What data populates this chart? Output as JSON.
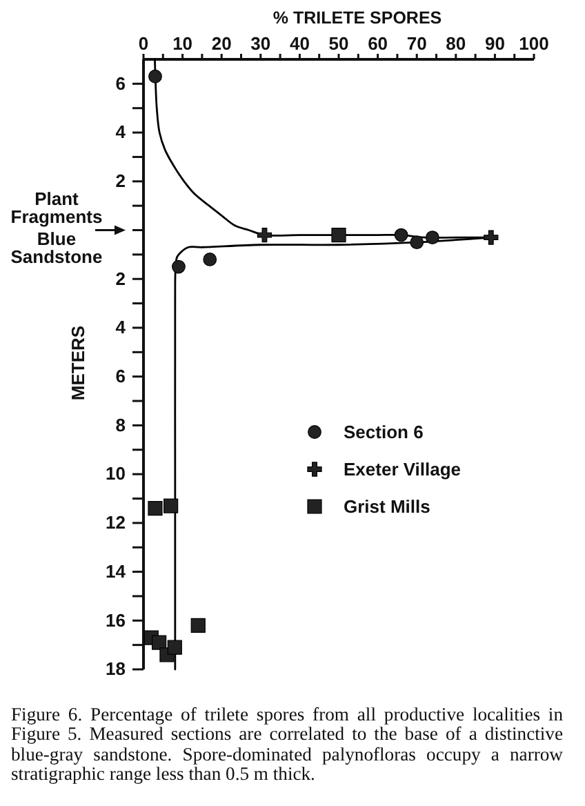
{
  "chart_data": {
    "type": "scatter",
    "xlabel": "% TRILETE SPORES",
    "ylabel": "METERS",
    "xlim": [
      0,
      100
    ],
    "xticks": [
      0,
      {
        "value": 5,
        "label": null
      },
      10,
      {
        "value": 15,
        "label": null
      },
      20,
      {
        "value": 25,
        "label": null
      },
      30,
      {
        "value": 35,
        "label": null
      },
      40,
      {
        "value": 45,
        "label": null
      },
      50,
      {
        "value": 55,
        "label": null
      },
      60,
      {
        "value": 65,
        "label": null
      },
      70,
      {
        "value": 75,
        "label": null
      },
      80,
      {
        "value": 85,
        "label": null
      },
      90,
      {
        "value": 95,
        "label": null
      },
      100
    ],
    "ylim": [
      -18,
      7
    ],
    "yticks": [
      6,
      {
        "value": 5,
        "label": null
      },
      4,
      {
        "value": 3,
        "label": null
      },
      2,
      {
        "value": 1,
        "label": null
      },
      {
        "value": 0,
        "label": null
      },
      {
        "value": -1,
        "label": null
      },
      {
        "value": -2,
        "label": "2"
      },
      {
        "value": -3,
        "label": null
      },
      {
        "value": -4,
        "label": "4"
      },
      {
        "value": -5,
        "label": null
      },
      {
        "value": -6,
        "label": "6"
      },
      {
        "value": -7,
        "label": null
      },
      {
        "value": -8,
        "label": "8"
      },
      {
        "value": -9,
        "label": null
      },
      {
        "value": -10,
        "label": "10"
      },
      {
        "value": -11,
        "label": null
      },
      {
        "value": -12,
        "label": "12"
      },
      {
        "value": -13,
        "label": null
      },
      {
        "value": -14,
        "label": "14"
      },
      {
        "value": -15,
        "label": null
      },
      {
        "value": -16,
        "label": "16"
      },
      {
        "value": -17,
        "label": null
      },
      {
        "value": -18,
        "label": "18"
      }
    ],
    "legend": "right",
    "series": [
      {
        "name": "Section 6",
        "marker": "circle",
        "color": "#222222",
        "x": [
          3,
          66,
          70,
          74,
          9,
          17
        ],
        "values": [
          6.3,
          -0.2,
          -0.5,
          -0.3,
          -1.5,
          -1.2
        ]
      },
      {
        "name": "Exeter Village",
        "marker": "cross",
        "color": "#222222",
        "x": [
          31,
          89
        ],
        "values": [
          -0.2,
          -0.3
        ]
      },
      {
        "name": "Grist Mills",
        "marker": "square",
        "color": "#222222",
        "x": [
          50,
          3,
          7,
          14,
          2,
          4,
          6,
          8
        ],
        "values": [
          -0.2,
          -11.4,
          -11.3,
          -16.2,
          -16.7,
          -16.9,
          -17.4,
          -17.1
        ]
      },
      {
        "type": "line",
        "color": "#000000",
        "x": [
          2.9,
          3.1,
          3.4,
          4.1,
          5.5,
          7.5,
          10.4,
          13,
          16.8,
          20,
          23.3,
          27,
          31,
          40,
          50,
          60,
          66,
          72,
          80,
          89
        ],
        "values": [
          7,
          6,
          5,
          4,
          3.3,
          2.7,
          2,
          1.5,
          1,
          0.6,
          0.2,
          0,
          -0.2,
          -0.2,
          -0.2,
          -0.2,
          -0.2,
          -0.3,
          -0.3,
          -0.3
        ]
      },
      {
        "type": "line",
        "color": "#000000",
        "x": [
          8.1,
          8.1,
          8.1,
          8.2,
          8.6,
          9.6,
          11.5,
          15,
          30,
          50,
          70,
          80,
          89
        ],
        "values": [
          -18,
          -10,
          -3,
          -1.6,
          -1.1,
          -0.9,
          -0.7,
          -0.7,
          -0.6,
          -0.6,
          -0.5,
          -0.4,
          -0.3
        ]
      }
    ],
    "annotations": [
      "Plant Fragments",
      "Blue Sandstone",
      "Figure 6. Percentage of trilete spores from all productive localities in Figure 5. Measured sections are correlated to the base of a distinctive blue-gray sandstone. Spore-dominated palynofloras occupy a narrow stratigraphic range less than 0.5 m thick."
    ]
  }
}
